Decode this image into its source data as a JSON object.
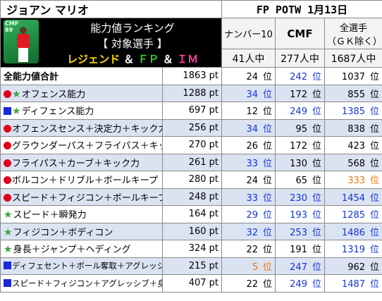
{
  "player_name": "ジョアン マリオ",
  "card_label": "FP POTW 1月13日",
  "card_position": "CMF",
  "card_rating": "89",
  "header": {
    "line1": "能力値ランキング",
    "line2": "【 対象選手 】",
    "line3": {
      "p1": "レジェンド",
      "amp1": " ＆ ",
      "p2": "ＦＰ",
      "amp2": " ＆ ",
      "p3": "ＩＭ"
    },
    "col1": "ナンバー10",
    "col2": "CMF",
    "col3_l1": "全選手",
    "col3_l2": "（ＧＫ除く）",
    "count1": "41人中",
    "count2": "277人中",
    "count3": "1687人中"
  },
  "rank_unit": "位",
  "rows": [
    {
      "marker": "",
      "label": "全能力値合計",
      "bold": true,
      "points": "1863 pt",
      "r1": "24",
      "c1": "black",
      "r2": "242",
      "c2": "blue",
      "r3": "1037",
      "c3": "black"
    },
    {
      "marker": "dot-star",
      "label": "オフェンス能力",
      "bold": false,
      "points": "1288 pt",
      "r1": "34",
      "c1": "blue",
      "r2": "172",
      "c2": "black",
      "r3": "855",
      "c3": "black"
    },
    {
      "marker": "square-star",
      "label": "ディフェンス能力",
      "bold": false,
      "points": "697 pt",
      "r1": "12",
      "c1": "black",
      "r2": "249",
      "c2": "blue",
      "r3": "1385",
      "c3": "blue"
    },
    {
      "marker": "dot",
      "label": "オフェンスセンス＋決定力＋キック力",
      "bold": false,
      "points": "256 pt",
      "r1": "34",
      "c1": "blue",
      "r2": "95",
      "c2": "black",
      "r3": "838",
      "c3": "black"
    },
    {
      "marker": "dot",
      "label": "グラウンダーパス＋フライパス＋キック力",
      "bold": false,
      "points": "270 pt",
      "r1": "26",
      "c1": "black",
      "r2": "172",
      "c2": "black",
      "r3": "423",
      "c3": "black"
    },
    {
      "marker": "dot",
      "label": "フライパス＋カーブ＋キック力",
      "bold": false,
      "points": "261 pt",
      "r1": "33",
      "c1": "blue",
      "r2": "130",
      "c2": "black",
      "r3": "568",
      "c3": "black"
    },
    {
      "marker": "dot",
      "label": "ボルコン＋ドリブル＋ボールキープ",
      "bold": false,
      "points": "280 pt",
      "r1": "24",
      "c1": "black",
      "r2": "65",
      "c2": "black",
      "r3": "333",
      "c3": "orange"
    },
    {
      "marker": "dot",
      "label": "スピード＋フィジコン＋ボールキープ",
      "bold": false,
      "points": "248 pt",
      "r1": "33",
      "c1": "blue",
      "r2": "230",
      "c2": "blue",
      "r3": "1454",
      "c3": "blue"
    },
    {
      "marker": "star",
      "label": "スピード＋瞬発力",
      "bold": false,
      "points": "164 pt",
      "r1": "29",
      "c1": "blue",
      "r2": "193",
      "c2": "blue",
      "r3": "1285",
      "c3": "blue"
    },
    {
      "marker": "star",
      "label": "フィジコン＋ボディコン",
      "bold": false,
      "points": "160 pt",
      "r1": "32",
      "c1": "blue",
      "r2": "253",
      "c2": "blue",
      "r3": "1486",
      "c3": "blue"
    },
    {
      "marker": "star",
      "label": "身長＋ジャンプ＋ヘディング",
      "bold": false,
      "points": "324 pt",
      "r1": "22",
      "c1": "black",
      "r2": "191",
      "c2": "black",
      "r3": "1319",
      "c3": "blue"
    },
    {
      "marker": "square",
      "label": "ディフェセント＋ボール奪取＋アグレッシブ",
      "bold": false,
      "small": true,
      "points": "215 pt",
      "r1": "5",
      "c1": "orange",
      "r2": "247",
      "c2": "blue",
      "r3": "962",
      "c3": "black"
    },
    {
      "marker": "square",
      "label": "スピード＋フィジコン＋アグレッシブ＋身長",
      "bold": false,
      "small": true,
      "points": "407 pt",
      "r1": "22",
      "c1": "black",
      "r2": "249",
      "c2": "blue",
      "r3": "1487",
      "c3": "blue"
    }
  ],
  "colors": {
    "blue": "#1434d8",
    "orange": "#f07800",
    "black": "#000000",
    "red_marker": "#e0001a",
    "blue_marker": "#1a2ad6",
    "star": "#3aa63a",
    "alt_row": "#dbe3f3"
  },
  "icons": {
    "dot": "red-circle-icon",
    "square": "blue-square-icon",
    "star": "green-star-icon"
  }
}
